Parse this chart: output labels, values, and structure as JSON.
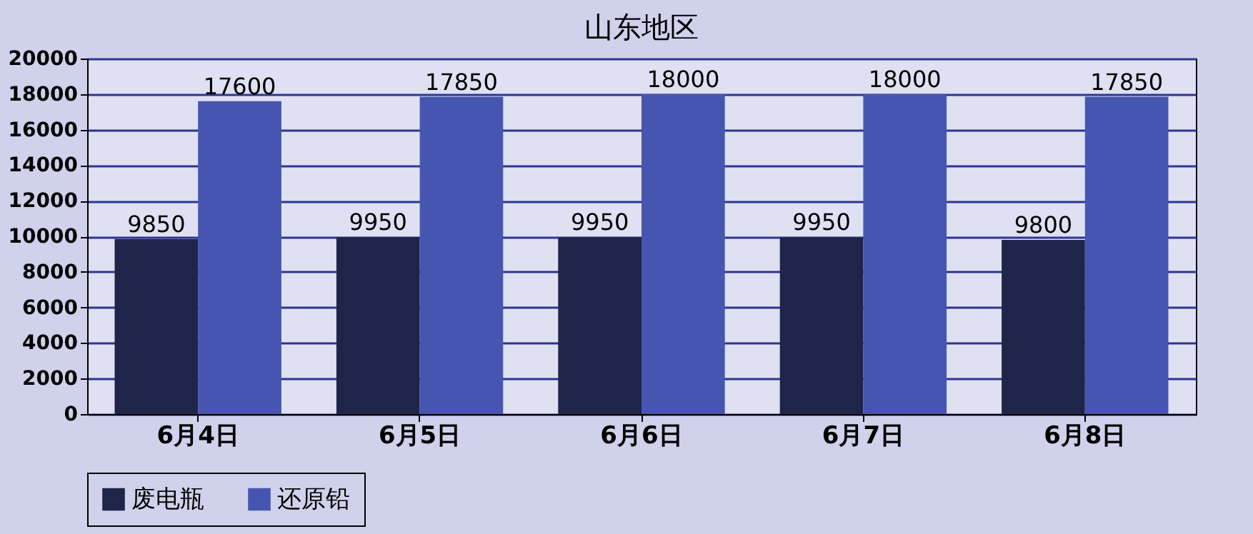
{
  "chart_data": {
    "type": "bar",
    "title": "山东地区",
    "categories": [
      "6月4日",
      "6月5日",
      "6月6日",
      "6月7日",
      "6月8日"
    ],
    "series": [
      {
        "name": "废电瓶",
        "color": "#1f2549",
        "values": [
          9850,
          9950,
          9950,
          9950,
          9800
        ]
      },
      {
        "name": "还原铅",
        "color": "#4656b0",
        "values": [
          17600,
          17850,
          18000,
          18000,
          17850
        ]
      }
    ],
    "ylim": [
      0,
      20000
    ],
    "yticks": [
      0,
      2000,
      4000,
      6000,
      8000,
      10000,
      12000,
      14000,
      16000,
      18000,
      20000
    ],
    "grid": "y",
    "legend": "bottom",
    "data_labels": true
  }
}
